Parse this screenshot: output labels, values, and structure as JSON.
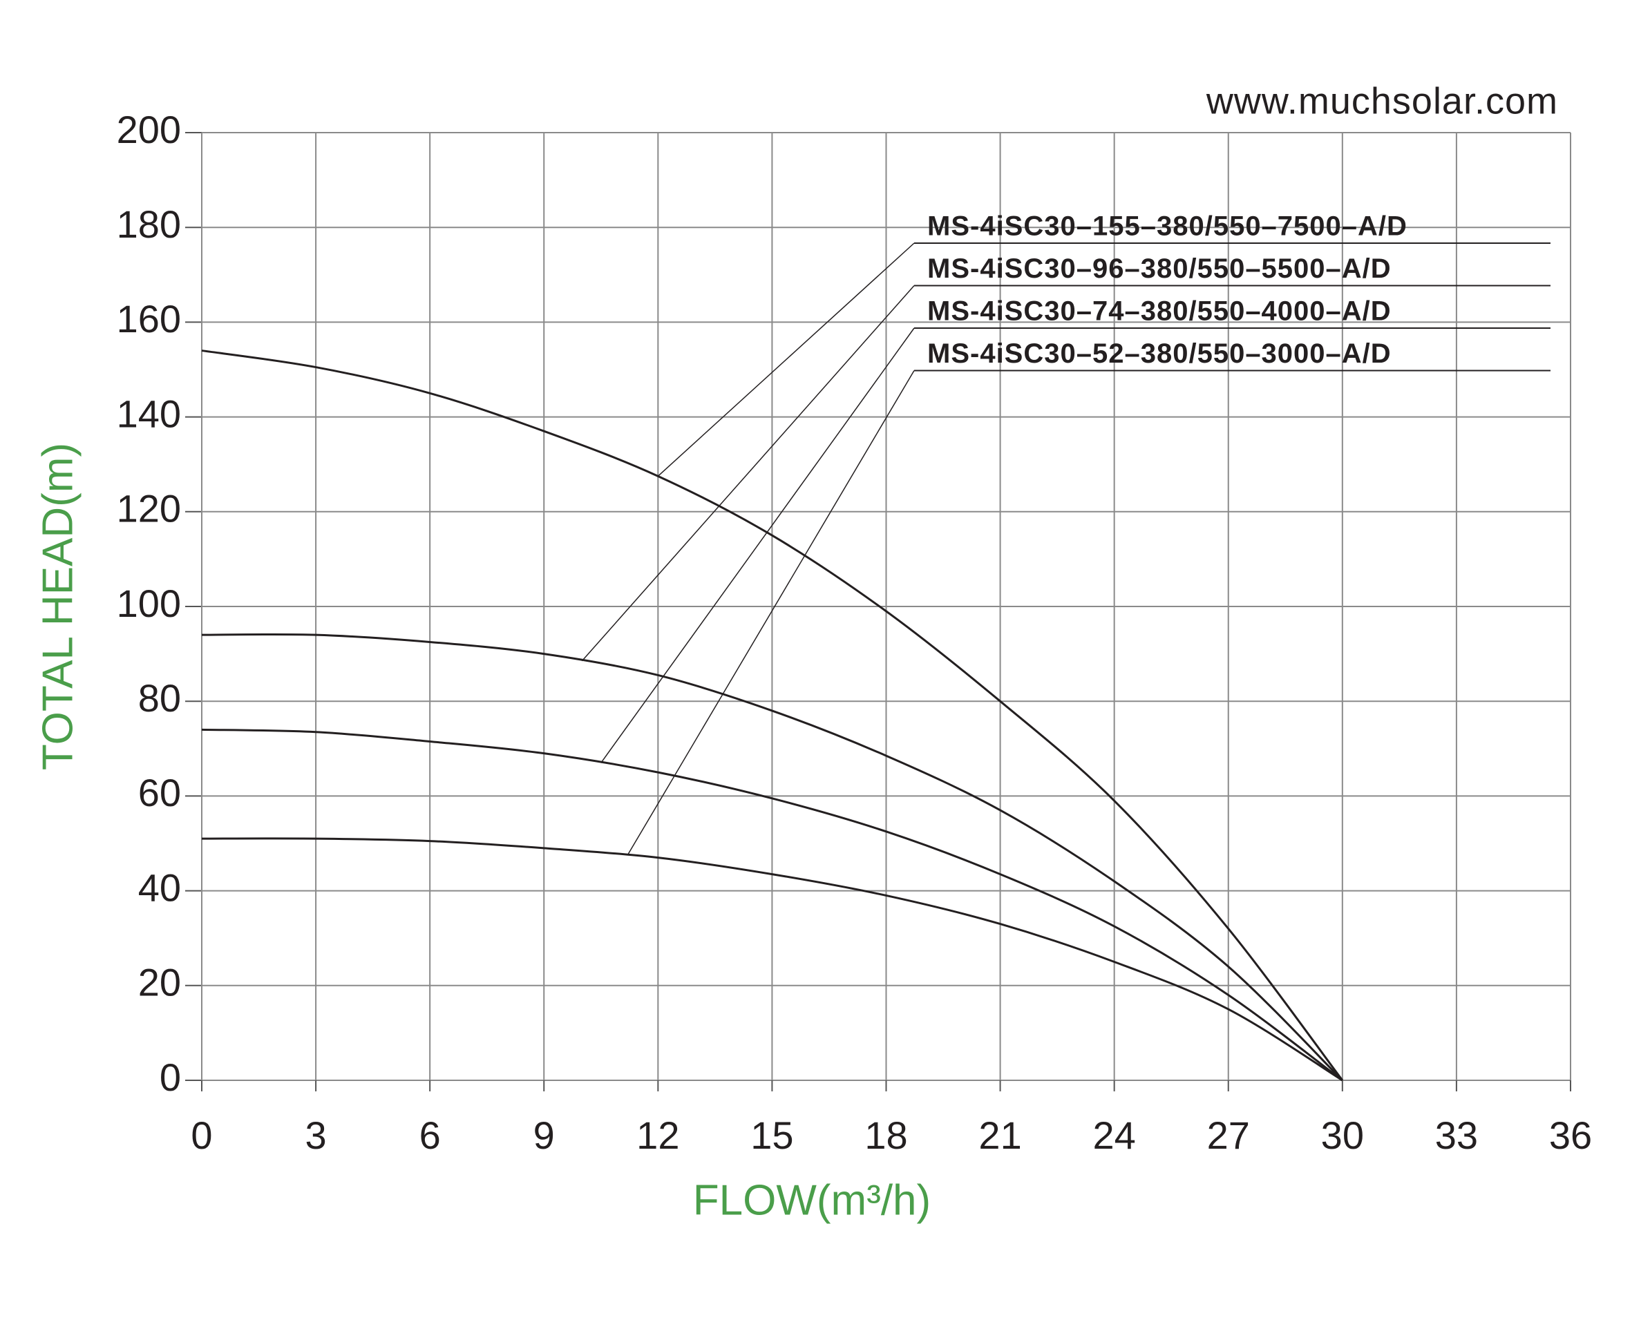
{
  "chart_data": {
    "type": "line",
    "source": "www.muchsolar.com",
    "x_label": "FLOW(m³/h)",
    "y_label": "TOTAL HEAD(m)",
    "x": [
      0,
      3,
      6,
      9,
      12,
      15,
      18,
      21,
      24,
      27,
      30
    ],
    "series": [
      {
        "name": "MS-4iSC30–155–380/550–7500–A/D",
        "color": "#231f20",
        "values": [
          154,
          150.5,
          145,
          137,
          127.5,
          115,
          99,
          80,
          59,
          32,
          0
        ]
      },
      {
        "name": "MS-4iSC30–96–380/550–5500–A/D",
        "color": "#231f20",
        "values": [
          94,
          94,
          92.5,
          90,
          85.5,
          78,
          68.5,
          57,
          42,
          24,
          0
        ]
      },
      {
        "name": "MS-4iSC30–74–380/550–4000–A/D",
        "color": "#231f20",
        "values": [
          74,
          73.5,
          71.5,
          69,
          65,
          59.5,
          52.5,
          43.5,
          32.5,
          18,
          0
        ]
      },
      {
        "name": "MS-4iSC30–52–380/550–3000–A/D",
        "color": "#231f20",
        "values": [
          51,
          51,
          50.5,
          49,
          47,
          43.5,
          39,
          33,
          25,
          15,
          0
        ]
      }
    ],
    "xlim": [
      0,
      36
    ],
    "xticks": [
      0,
      3,
      6,
      9,
      12,
      15,
      18,
      21,
      24,
      27,
      30,
      33,
      36
    ],
    "ylim": [
      0,
      200
    ],
    "yticks": [
      0,
      20,
      40,
      60,
      80,
      100,
      120,
      140,
      160,
      180,
      200
    ],
    "grid": true
  }
}
